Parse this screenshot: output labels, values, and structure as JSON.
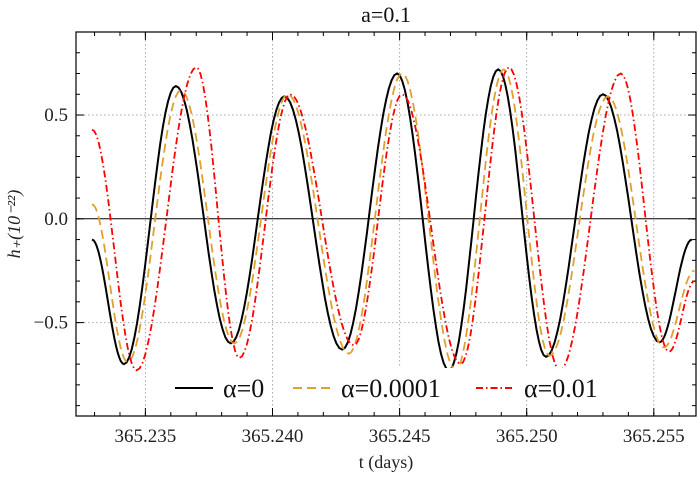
{
  "chart_data": {
    "type": "line",
    "title": "a=0.1",
    "xlabel": "t (days)",
    "ylabel": "h₊(10⁻²²)",
    "xlim": [
      365.23227,
      365.25666
    ],
    "ylim": [
      -0.95,
      0.9
    ],
    "xticks": [
      365.235,
      365.24,
      365.245,
      365.25,
      365.255
    ],
    "xtick_labels": [
      "365.235",
      "365.240",
      "365.245",
      "365.250",
      "365.255"
    ],
    "yticks": [
      -0.5,
      0.0,
      0.5
    ],
    "ytick_labels": [
      "−0.5",
      "0.0",
      "0.5"
    ],
    "grid": true,
    "legend_placement": "bottom-center",
    "series": [
      {
        "name": "α=0",
        "color": "#000000",
        "style": "solid",
        "points": [
          [
            365.2329,
            -0.1
          ],
          [
            365.23416,
            -0.7
          ],
          [
            365.2362,
            0.64
          ],
          [
            365.23836,
            -0.6
          ],
          [
            365.24047,
            0.59
          ],
          [
            365.24274,
            -0.63
          ],
          [
            365.2449,
            0.7
          ],
          [
            365.24694,
            -0.73
          ],
          [
            365.24888,
            0.72
          ],
          [
            365.25076,
            -0.665
          ],
          [
            365.253,
            0.6
          ],
          [
            365.25522,
            -0.595
          ],
          [
            365.2565,
            -0.1
          ]
        ]
      },
      {
        "name": "α=0.0001",
        "color": "#E0A030",
        "style": "dashed",
        "points": [
          [
            365.2329,
            0.07
          ],
          [
            365.2343,
            -0.69
          ],
          [
            365.2364,
            0.62
          ],
          [
            365.2385,
            -0.6
          ],
          [
            365.2406,
            0.6
          ],
          [
            365.243,
            -0.65
          ],
          [
            365.2451,
            0.7
          ],
          [
            365.2472,
            -0.73
          ],
          [
            365.2491,
            0.72
          ],
          [
            365.2509,
            -0.66
          ],
          [
            365.2532,
            0.59
          ],
          [
            365.2554,
            -0.62
          ],
          [
            365.2566,
            -0.25
          ]
        ]
      },
      {
        "name": "α=0.01",
        "color": "#FF0000",
        "style": "dashdot",
        "points": [
          [
            365.2329,
            0.43
          ],
          [
            365.23465,
            -0.73
          ],
          [
            365.237,
            0.73
          ],
          [
            365.2387,
            -0.67
          ],
          [
            365.2407,
            0.6
          ],
          [
            365.2432,
            -0.61
          ],
          [
            365.2451,
            0.6
          ],
          [
            365.2474,
            -0.7
          ],
          [
            365.2493,
            0.73
          ],
          [
            365.2513,
            -0.73
          ],
          [
            365.2537,
            0.7
          ],
          [
            365.2556,
            -0.64
          ],
          [
            365.2566,
            -0.3
          ]
        ]
      }
    ]
  }
}
